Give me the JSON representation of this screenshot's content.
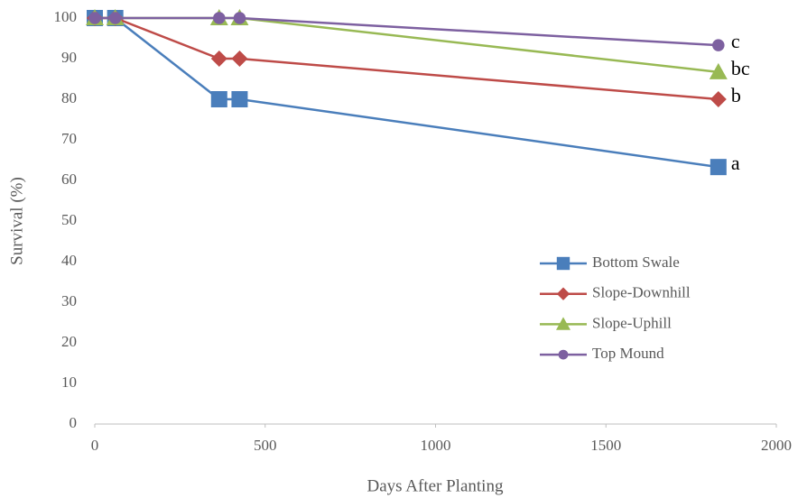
{
  "chart_data": {
    "type": "line",
    "x_label": "Days After Planting",
    "y_label": "Survival (%)",
    "x": [
      0,
      60,
      365,
      425,
      1830
    ],
    "xlim": [
      0,
      2000
    ],
    "xticks": [
      0,
      500,
      1000,
      1500,
      2000
    ],
    "ylim": [
      0,
      100
    ],
    "yticks": [
      0,
      10,
      20,
      30,
      40,
      50,
      60,
      70,
      80,
      90,
      100
    ],
    "grid": false,
    "legend": "lower right",
    "series": [
      {
        "name": "Bottom Swale",
        "color": "#4a7ebb",
        "marker": "square",
        "values": [
          100,
          100,
          80,
          80,
          63.3
        ],
        "label": "a"
      },
      {
        "name": "Slope-Downhill",
        "color": "#be4b48",
        "marker": "diamond",
        "values": [
          100,
          100,
          90,
          90,
          80
        ],
        "label": "b"
      },
      {
        "name": "Slope-Uphill",
        "color": "#98b954",
        "marker": "triangle",
        "values": [
          100,
          100,
          100,
          100,
          86.7
        ],
        "label": "bc"
      },
      {
        "name": "Top Mound",
        "color": "#7d60a0",
        "marker": "circle",
        "values": [
          100,
          100,
          100,
          100,
          93.3
        ],
        "label": "c"
      }
    ]
  }
}
